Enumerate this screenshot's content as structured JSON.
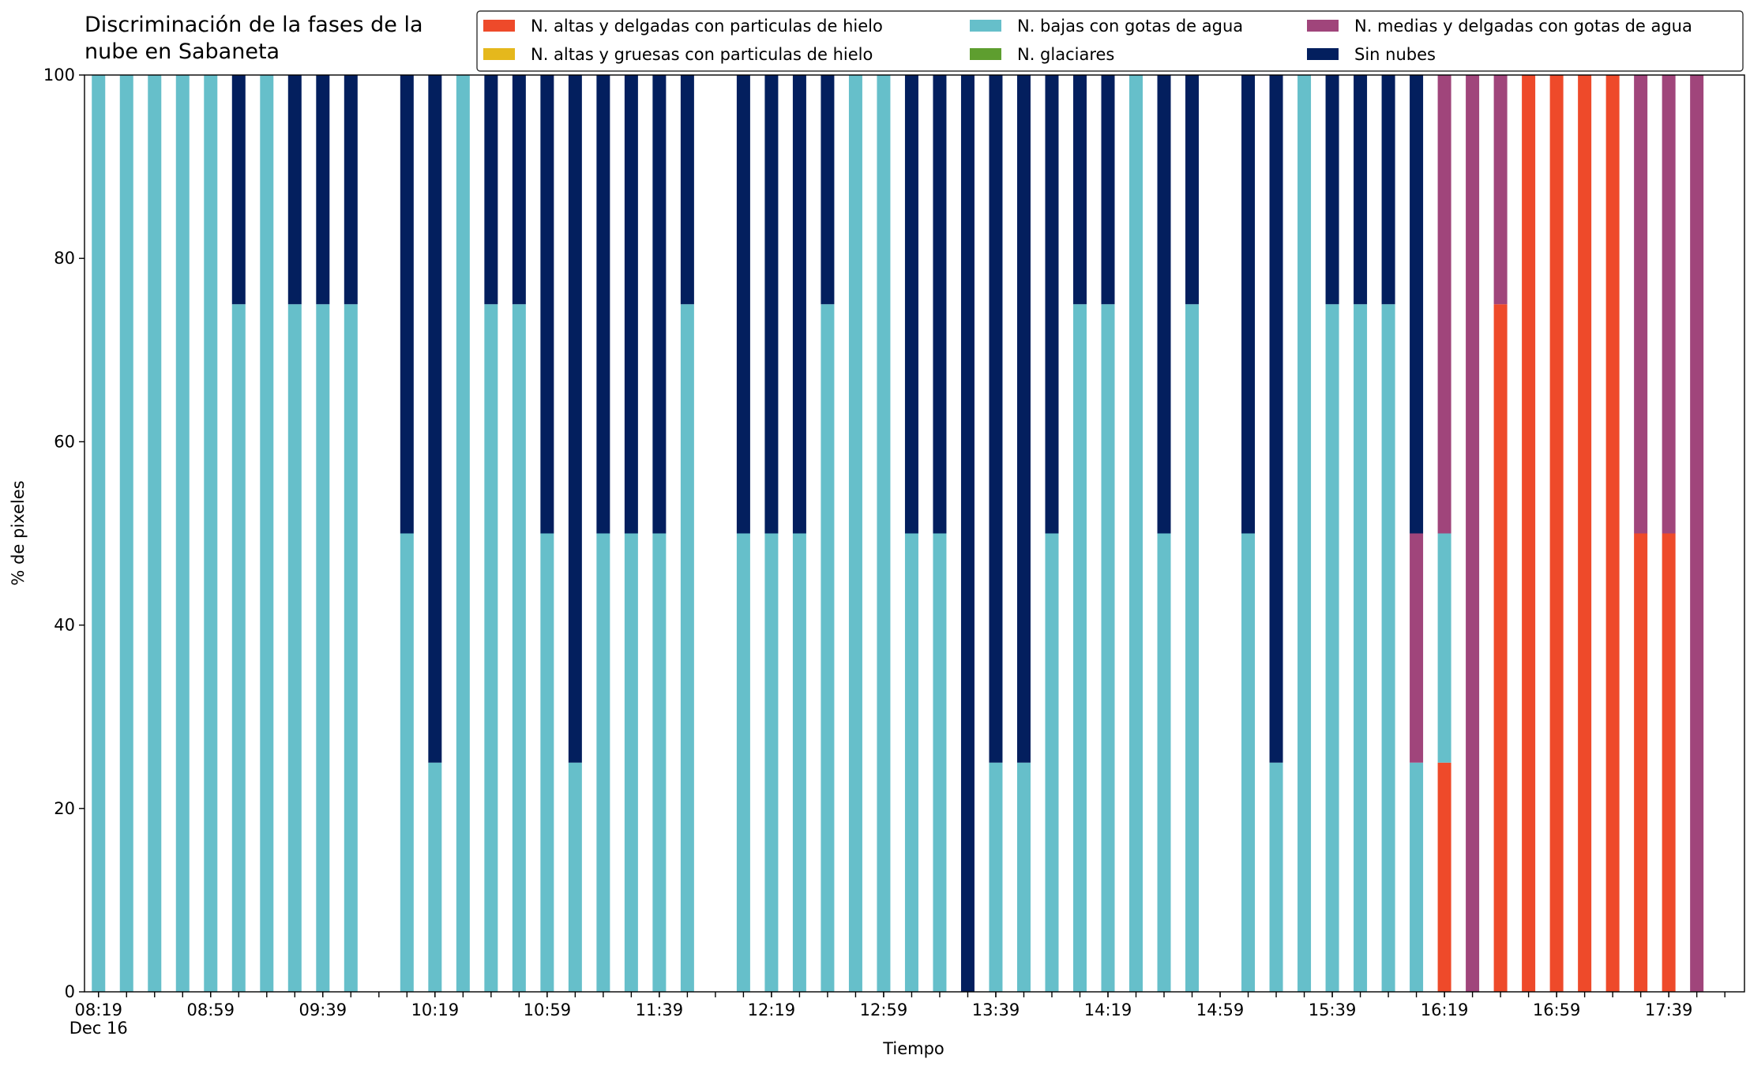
{
  "chart_data": {
    "type": "stacked_bar",
    "title": [
      "Discriminación de la fases de la",
      "nube en Sabaneta"
    ],
    "xlabel": "Tiempo",
    "ylabel": "% de pixeles",
    "x": [
      "08:19",
      "08:29",
      "08:39",
      "08:49",
      "08:59",
      "09:09",
      "09:19",
      "09:29",
      "09:39",
      "09:49",
      "10:09",
      "10:19",
      "10:29",
      "10:39",
      "10:49",
      "10:59",
      "11:09",
      "11:19",
      "11:29",
      "11:39",
      "11:49",
      "12:09",
      "12:19",
      "12:29",
      "12:39",
      "12:49",
      "12:59",
      "13:09",
      "13:19",
      "13:29",
      "13:39",
      "13:49",
      "13:59",
      "14:09",
      "14:19",
      "14:29",
      "14:39",
      "14:49",
      "15:09",
      "15:19",
      "15:29",
      "15:39",
      "15:49",
      "15:59",
      "16:09",
      "16:19",
      "16:29",
      "16:39",
      "16:49",
      "16:59",
      "17:09",
      "17:19",
      "17:29",
      "17:39",
      "17:49"
    ],
    "series": [
      {
        "name": "N. altas y delgadas con particulas de hielo",
        "color": "#ee4a2a",
        "values": [
          0,
          0,
          0,
          0,
          0,
          0,
          0,
          0,
          0,
          0,
          0,
          0,
          0,
          0,
          0,
          0,
          0,
          0,
          0,
          0,
          0,
          0,
          0,
          0,
          0,
          0,
          0,
          0,
          0,
          0,
          0,
          0,
          0,
          0,
          0,
          0,
          0,
          0,
          0,
          0,
          0,
          0,
          0,
          0,
          0,
          25,
          0,
          75,
          100,
          100,
          100,
          100,
          50,
          50,
          0
        ]
      },
      {
        "name": "N. altas y gruesas con particulas de hielo",
        "color": "#e5b81c",
        "values": [
          0,
          0,
          0,
          0,
          0,
          0,
          0,
          0,
          0,
          0,
          0,
          0,
          0,
          0,
          0,
          0,
          0,
          0,
          0,
          0,
          0,
          0,
          0,
          0,
          0,
          0,
          0,
          0,
          0,
          0,
          0,
          0,
          0,
          0,
          0,
          0,
          0,
          0,
          0,
          0,
          0,
          0,
          0,
          0,
          0,
          0,
          0,
          0,
          0,
          0,
          0,
          0,
          0,
          0,
          0
        ]
      },
      {
        "name": "N. bajas con gotas de agua",
        "color": "#66bfca",
        "values": [
          100,
          100,
          100,
          100,
          100,
          75,
          100,
          75,
          75,
          75,
          50,
          25,
          100,
          75,
          75,
          50,
          25,
          50,
          50,
          50,
          75,
          50,
          50,
          50,
          75,
          100,
          100,
          50,
          50,
          0,
          25,
          25,
          50,
          75,
          75,
          100,
          50,
          75,
          50,
          25,
          100,
          75,
          75,
          75,
          25,
          25,
          0,
          0,
          0,
          0,
          0,
          0,
          0,
          0,
          0
        ]
      },
      {
        "name": "N. glaciares",
        "color": "#5e9e2f",
        "values": [
          0,
          0,
          0,
          0,
          0,
          0,
          0,
          0,
          0,
          0,
          0,
          0,
          0,
          0,
          0,
          0,
          0,
          0,
          0,
          0,
          0,
          0,
          0,
          0,
          0,
          0,
          0,
          0,
          0,
          0,
          0,
          0,
          0,
          0,
          0,
          0,
          0,
          0,
          0,
          0,
          0,
          0,
          0,
          0,
          0,
          0,
          0,
          0,
          0,
          0,
          0,
          0,
          0,
          0,
          0
        ]
      },
      {
        "name": "N. medias y delgadas con gotas de agua",
        "color": "#a0457b",
        "values": [
          0,
          0,
          0,
          0,
          0,
          0,
          0,
          0,
          0,
          0,
          0,
          0,
          0,
          0,
          0,
          0,
          0,
          0,
          0,
          0,
          0,
          0,
          0,
          0,
          0,
          0,
          0,
          0,
          0,
          0,
          0,
          0,
          0,
          0,
          0,
          0,
          0,
          0,
          0,
          0,
          0,
          0,
          0,
          0,
          25,
          50,
          100,
          25,
          0,
          0,
          0,
          0,
          50,
          50,
          100
        ]
      },
      {
        "name": "Sin nubes",
        "color": "#031f5e",
        "values": [
          0,
          0,
          0,
          0,
          0,
          25,
          0,
          25,
          25,
          25,
          50,
          75,
          0,
          25,
          25,
          50,
          75,
          50,
          50,
          50,
          25,
          50,
          50,
          50,
          25,
          0,
          0,
          50,
          50,
          100,
          75,
          75,
          50,
          25,
          25,
          0,
          50,
          25,
          50,
          75,
          0,
          25,
          25,
          25,
          50,
          0,
          0,
          0,
          0,
          0,
          0,
          0,
          0,
          0,
          0
        ]
      }
    ],
    "xlim": [
      "08:14",
      "18:06"
    ],
    "xticks": [
      "08:19",
      "08:59",
      "09:39",
      "10:19",
      "10:59",
      "11:39",
      "12:19",
      "12:59",
      "13:39",
      "14:19",
      "14:59",
      "15:39",
      "16:19",
      "16:59",
      "17:39"
    ],
    "xtick_date": "Dec 16",
    "xminorticks": [
      "08:19",
      "08:29",
      "08:39",
      "08:49",
      "08:59",
      "09:09",
      "09:19",
      "09:29",
      "09:39",
      "09:49",
      "09:59",
      "10:09",
      "10:19",
      "10:29",
      "10:39",
      "10:49",
      "10:59",
      "11:09",
      "11:19",
      "11:29",
      "11:39",
      "11:49",
      "11:59",
      "12:09",
      "12:19",
      "12:29",
      "12:39",
      "12:49",
      "12:59",
      "13:09",
      "13:19",
      "13:29",
      "13:39",
      "13:49",
      "13:59",
      "14:09",
      "14:19",
      "14:29",
      "14:39",
      "14:49",
      "14:59",
      "15:09",
      "15:19",
      "15:29",
      "15:39",
      "15:49",
      "15:59",
      "16:09",
      "16:19",
      "16:29",
      "16:39",
      "16:49",
      "16:59",
      "17:09",
      "17:19",
      "17:29",
      "17:39",
      "17:49",
      "17:59"
    ],
    "ylim": [
      0,
      100
    ],
    "yticks": [
      0,
      20,
      40,
      60,
      80,
      100
    ],
    "legend": "upper right",
    "legend_columns": 3
  }
}
